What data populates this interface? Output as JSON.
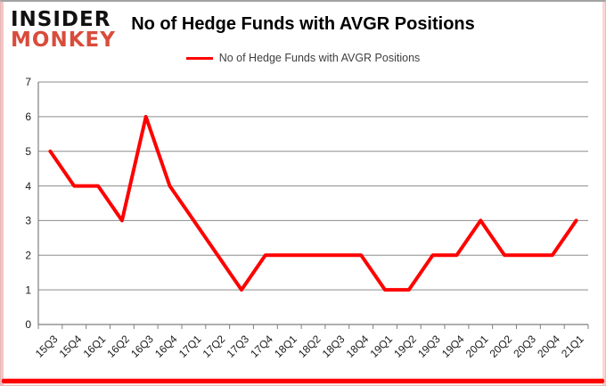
{
  "logo": {
    "line1": "INSIDER",
    "line2": "MONKEY"
  },
  "header": {
    "title": "No of Hedge Funds with AVGR Positions"
  },
  "legend": {
    "label": "No of Hedge Funds with AVGR Positions"
  },
  "colors": {
    "series": "#ff0000",
    "logo_black": "#111111",
    "logo_red": "#d94c3b",
    "grid": "#8c8c8c",
    "axis": "#7f7f7f",
    "tick_label": "#1a1a1a",
    "accent_bar": "#ff0000"
  },
  "chart_data": {
    "type": "line",
    "title": "No of Hedge Funds with AVGR Positions",
    "categories": [
      "15Q3",
      "15Q4",
      "16Q1",
      "16Q2",
      "16Q3",
      "16Q4",
      "17Q1",
      "17Q2",
      "17Q3",
      "17Q4",
      "18Q1",
      "18Q2",
      "18Q3",
      "18Q4",
      "19Q1",
      "19Q2",
      "19Q3",
      "19Q4",
      "20Q1",
      "20Q2",
      "20Q3",
      "20Q4",
      "21Q1"
    ],
    "series": [
      {
        "name": "No of Hedge Funds with AVGR Positions",
        "values": [
          5,
          4,
          4,
          3,
          6,
          4,
          3,
          2,
          1,
          2,
          2,
          2,
          2,
          2,
          1,
          1,
          2,
          2,
          3,
          2,
          2,
          2,
          3
        ]
      }
    ],
    "xlabel": "",
    "ylabel": "",
    "ylim": [
      0,
      7
    ],
    "yticks": [
      0,
      1,
      2,
      3,
      4,
      5,
      6,
      7
    ],
    "grid": true,
    "legend_position": "top-center"
  }
}
